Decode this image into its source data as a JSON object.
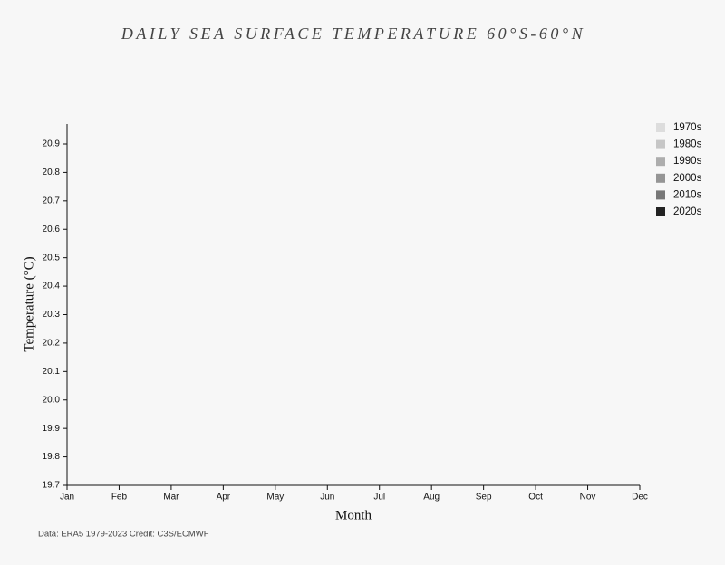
{
  "chart_data": {
    "type": "line",
    "title": "DAILY SEA SURFACE TEMPERATURE 60°S-60°N",
    "x_label": "Month",
    "y_label": "Temperature (°C)",
    "source": "Data: ERA5 1979-2023 Credit: C3S/ECMWF",
    "categories": [
      "Jan",
      "Feb",
      "Mar",
      "Apr",
      "May",
      "Jun",
      "Jul",
      "Aug",
      "Sep",
      "Oct",
      "Nov",
      "Dec"
    ],
    "ylim": [
      19.7,
      20.97
    ],
    "yticks": [
      19.7,
      19.8,
      19.9,
      {
        "value": 20,
        "label": "20.0"
      },
      20.1,
      20.2,
      20.3,
      20.4,
      20.5,
      20.6,
      20.7,
      20.8,
      20.9
    ],
    "legend": "top-right",
    "series": [
      {
        "name": "1970s",
        "color": "#dddddd"
      },
      {
        "name": "1980s",
        "color": "#c6c6c6"
      },
      {
        "name": "1990s",
        "color": "#adadad"
      },
      {
        "name": "2000s",
        "color": "#959595"
      },
      {
        "name": "2010s",
        "color": "#777777"
      },
      {
        "name": "2020s",
        "color": "#222222"
      }
    ]
  }
}
